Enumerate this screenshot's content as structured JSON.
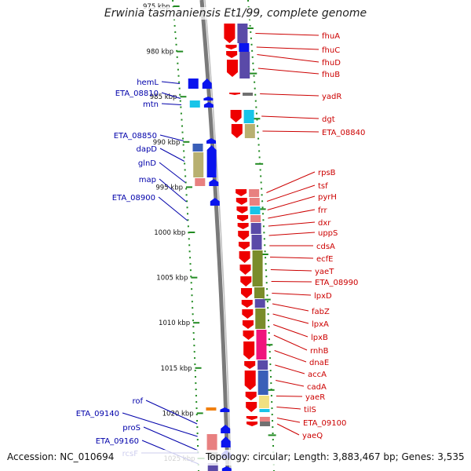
{
  "title": "Erwinia tasmaniensis Et1/99, complete genome",
  "footer": {
    "accession": "Accession: NC_010694",
    "topology": "Topology: circular; Length: 3,883,467 bp; Genes: 3,535"
  },
  "colors": {
    "forward_label": "#0000aa",
    "reverse_label": "#cc0000",
    "forward_arrow": "#0a14ee",
    "reverse_arrow": "#ee0000",
    "backbone": "#7a7a7a",
    "dotted_ring": "#228b22",
    "cog_blue": "#3a5fb8",
    "cog_purple": "#5a4aa8",
    "cog_olive": "#7a8c2a",
    "cog_khaki": "#b8b070",
    "cog_cyan": "#17c4e8",
    "cog_pink": "#f0147c",
    "cog_salmon": "#e88080",
    "cog_orange": "#f08010",
    "cog_gray": "#707070"
  },
  "scale_ticks": [
    "975 kbp",
    "980 kbp",
    "985 kbp",
    "990 kbp",
    "995 kbp",
    "1000 kbp",
    "1005 kbp",
    "1010 kbp",
    "1015 kbp",
    "1020 kbp",
    "1025 kbp"
  ],
  "forward_genes": [
    "hemL",
    "ETA_08810",
    "mtn",
    "ETA_08850",
    "dapD",
    "glnD",
    "map",
    "ETA_08900",
    "rof",
    "ETA_09140",
    "proS",
    "ETA_09160",
    "rcsF"
  ],
  "reverse_genes": [
    "fhuA",
    "fhuC",
    "fhuD",
    "fhuB",
    "yadR",
    "dgt",
    "ETA_08840",
    "rpsB",
    "tsf",
    "pyrH",
    "frr",
    "dxr",
    "uppS",
    "cdsA",
    "ecfE",
    "yaeT",
    "ETA_08990",
    "lpxD",
    "fabZ",
    "lpxA",
    "lpxB",
    "rnhB",
    "dnaE",
    "accA",
    "cadA",
    "yaeR",
    "tilS",
    "ETA_09100",
    "yaeQ"
  ]
}
